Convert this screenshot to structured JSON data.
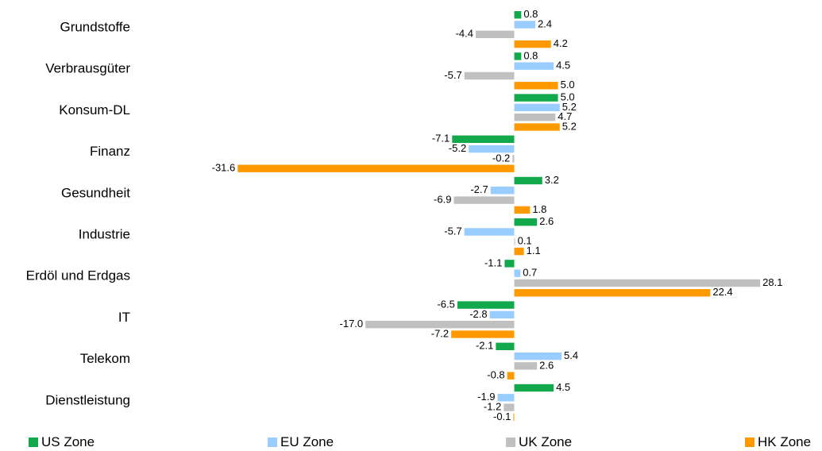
{
  "chart_data": {
    "type": "bar",
    "orientation": "horizontal",
    "title": "",
    "xlabel": "",
    "ylabel": "",
    "grid": false,
    "legend_position": "bottom",
    "categories": [
      "Grundstoffe",
      "Verbrausgüter",
      "Konsum-DL",
      "Finanz",
      "Gesundheit",
      "Industrie",
      "Erdöl und Erdgas",
      "IT",
      "Telekom",
      "Dienstleistung"
    ],
    "series": [
      {
        "name": "US Zone",
        "color": "#12a84c",
        "values": [
          0.8,
          0.8,
          5.0,
          -7.1,
          3.2,
          2.6,
          -1.1,
          -6.5,
          -2.1,
          4.5
        ]
      },
      {
        "name": "EU Zone",
        "color": "#99ccff",
        "values": [
          2.4,
          4.5,
          5.2,
          -5.2,
          -2.7,
          -5.7,
          0.7,
          -2.8,
          5.4,
          -1.9
        ]
      },
      {
        "name": "UK Zone",
        "color": "#c0c0c0",
        "values": [
          -4.4,
          -5.7,
          4.7,
          -0.2,
          -6.9,
          0.1,
          28.1,
          -17.0,
          2.6,
          -1.2
        ]
      },
      {
        "name": "HK Zone",
        "color": "#ff9900",
        "values": [
          4.2,
          5.0,
          5.2,
          -31.6,
          1.8,
          1.1,
          22.4,
          -7.2,
          -0.8,
          -0.1
        ]
      }
    ]
  }
}
